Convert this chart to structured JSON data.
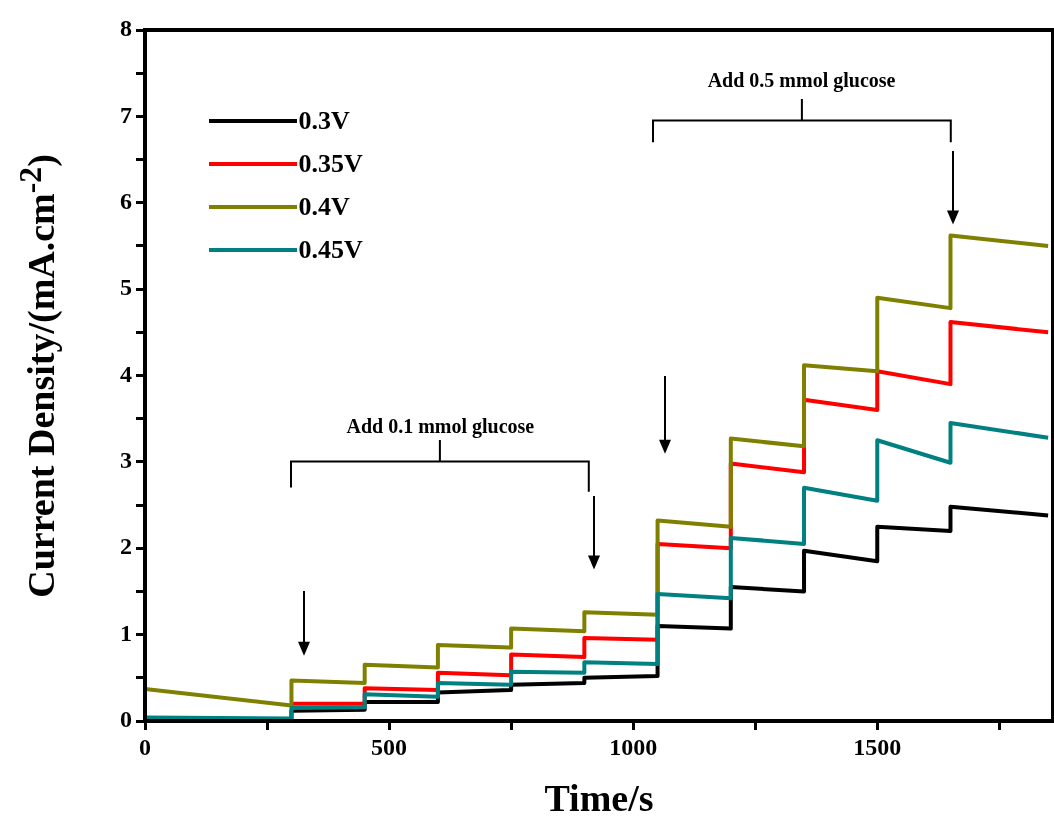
{
  "chart_data": {
    "type": "line",
    "xlabel": "Time/s",
    "ylabel": "Current Density/(mA.cm$^{-2}$)",
    "x": [
      0,
      300,
      300,
      450,
      450,
      600,
      600,
      750,
      750,
      900,
      900,
      1050,
      1050,
      1200,
      1200,
      1350,
      1350,
      1500,
      1500,
      1650,
      1650,
      1850
    ],
    "series": [
      {
        "name": "0.3V",
        "color": "#000000",
        "values": [
          0.02,
          0.02,
          0.12,
          0.13,
          0.22,
          0.22,
          0.33,
          0.36,
          0.42,
          0.44,
          0.5,
          0.52,
          1.1,
          1.07,
          1.55,
          1.5,
          1.97,
          1.85,
          2.25,
          2.2,
          2.48,
          2.38
        ]
      },
      {
        "name": "0.35V",
        "color": "#ff0000",
        "values": [
          null,
          null,
          0.2,
          0.2,
          0.38,
          0.36,
          0.56,
          0.53,
          0.77,
          0.74,
          0.96,
          0.94,
          2.05,
          2.0,
          2.98,
          2.88,
          3.72,
          3.6,
          4.05,
          3.9,
          4.62,
          4.5
        ]
      },
      {
        "name": "0.4V",
        "color": "#808000",
        "values": [
          0.37,
          0.18,
          0.47,
          0.44,
          0.65,
          0.62,
          0.88,
          0.85,
          1.07,
          1.04,
          1.26,
          1.23,
          2.32,
          2.25,
          3.27,
          3.18,
          4.12,
          4.05,
          4.9,
          4.78,
          5.62,
          5.5
        ]
      },
      {
        "name": "0.45V",
        "color": "#008080",
        "values": [
          0.04,
          0.03,
          0.15,
          0.16,
          0.31,
          0.28,
          0.44,
          0.42,
          0.57,
          0.56,
          0.68,
          0.66,
          1.47,
          1.42,
          2.12,
          2.05,
          2.7,
          2.55,
          3.25,
          2.99,
          3.45,
          3.28
        ]
      }
    ],
    "xlim": [
      0,
      1860
    ],
    "xticks": [
      0,
      {
        "value": 250,
        "label": null
      },
      500,
      {
        "value": 750,
        "label": null
      },
      1000,
      {
        "value": 1250,
        "label": null
      },
      1500,
      {
        "value": 1750,
        "label": null
      }
    ],
    "ylim": [
      0,
      8
    ],
    "yticks": [
      0,
      {
        "value": 0.5,
        "label": null
      },
      1,
      {
        "value": 1.5,
        "label": null
      },
      2,
      {
        "value": 2.5,
        "label": null
      },
      3,
      {
        "value": 3.5,
        "label": null
      },
      4,
      {
        "value": 4.5,
        "label": null
      },
      5,
      {
        "value": 5.5,
        "label": null
      },
      6,
      {
        "value": 6.5,
        "label": null
      },
      7,
      {
        "value": 7.5,
        "label": null
      },
      8
    ],
    "annotations": [
      "Add 0.1 mmol glucose",
      "Add 0.5 mmol glucose"
    ],
    "legend": "top left",
    "marker": "none",
    "line_style": "solid"
  }
}
